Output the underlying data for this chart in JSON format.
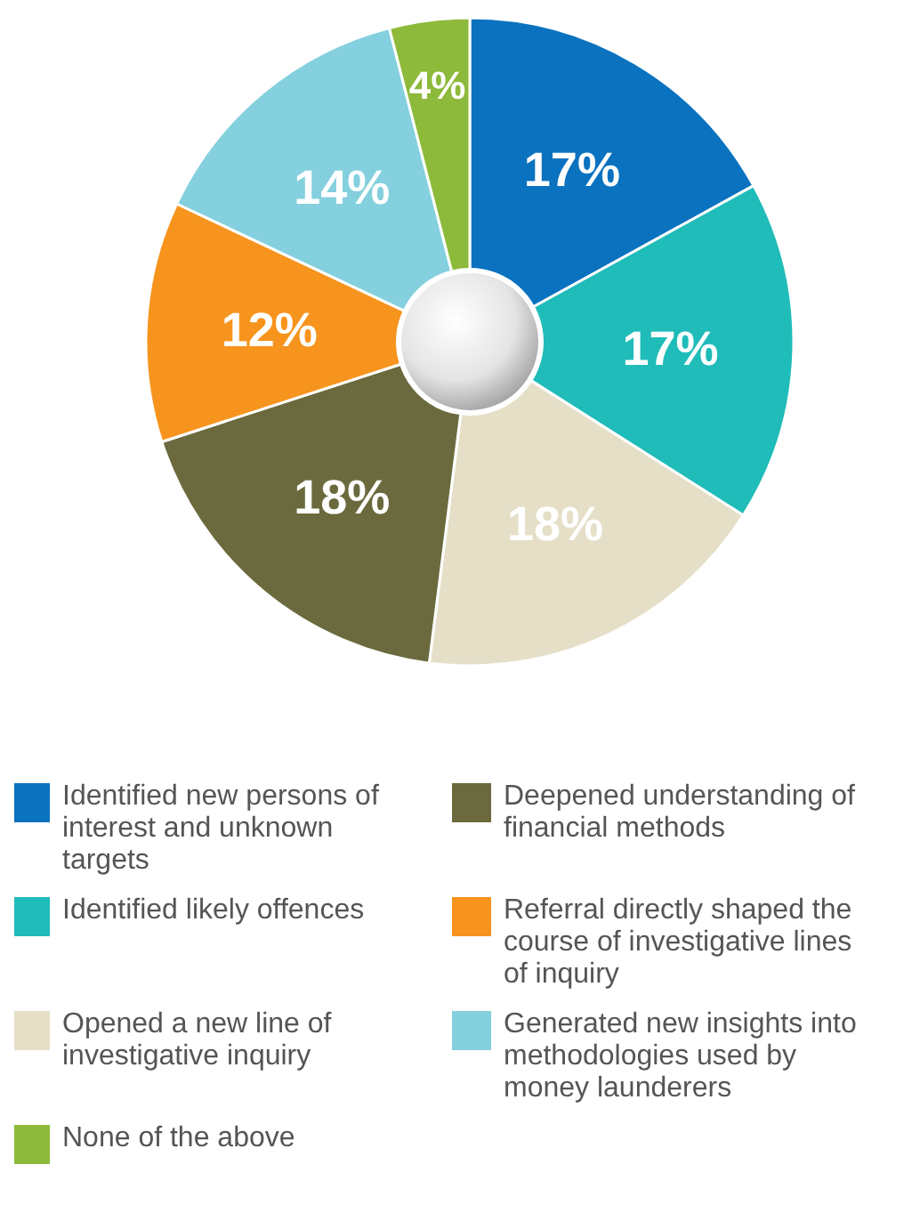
{
  "chart_data": {
    "type": "donut",
    "categories": [
      "Identified new persons of interest and unknown targets",
      "Identified likely offences",
      "Opened a new line of investigative inquiry",
      "Deepened understanding of financial methods",
      "Referral directly shaped the course of investigative lines of inquiry",
      "Generated new insights into methodologies used by money launderers",
      "None of the above"
    ],
    "values": [
      17,
      17,
      18,
      18,
      12,
      14,
      4
    ],
    "value_labels": [
      "17%",
      "17%",
      "18%",
      "18%",
      "12%",
      "14%",
      "4%"
    ],
    "colors": [
      "#0a72bf",
      "#1fbcb9",
      "#e5dfc8",
      "#6b6a3e",
      "#f7941d",
      "#84d0de",
      "#8dba3a"
    ],
    "legend": "bottom"
  }
}
